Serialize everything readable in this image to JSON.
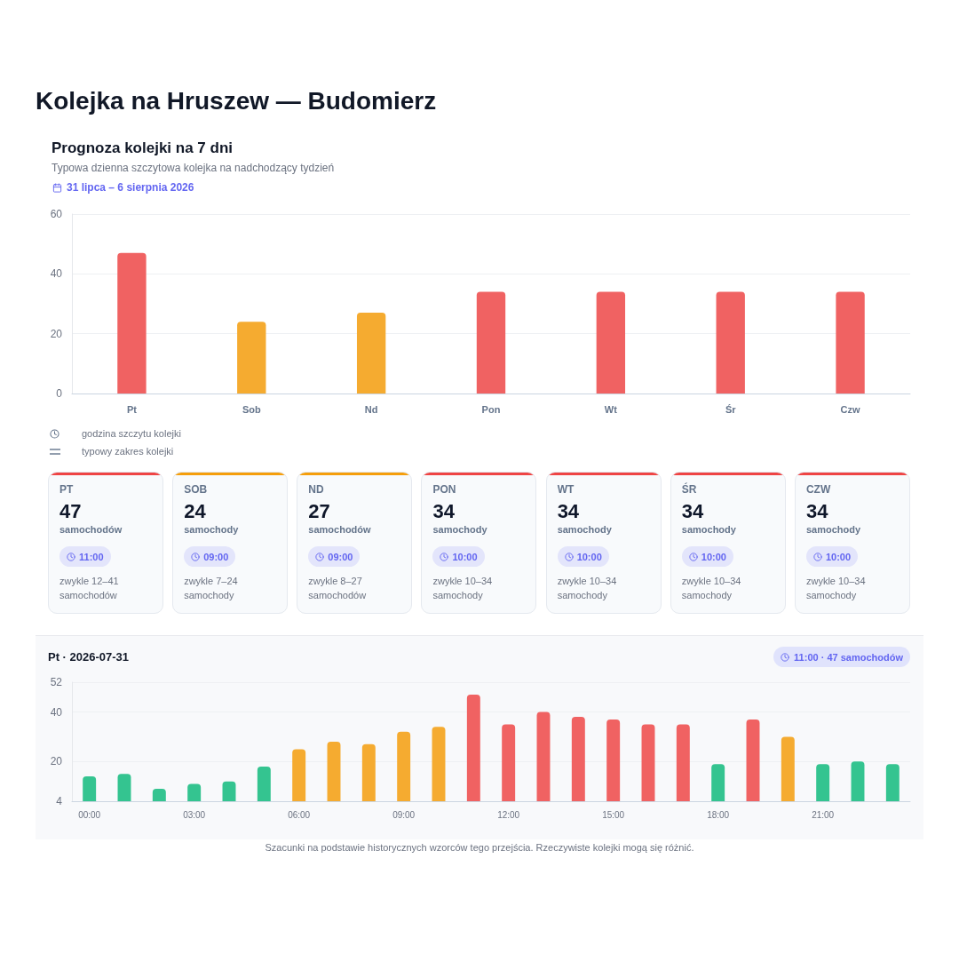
{
  "chart_data": [
    {
      "type": "bar",
      "title": "Prognoza kolejki na 7 dni",
      "subtitle": "Typowa dzienna szczytowa kolejka na nadchodzący tydzień",
      "annotations": [
        "Kolejka na Hruszew — Budomierz",
        "31 lipca – 6 sierpnia 2026",
        "godzina szczytu kolejki",
        "typowy zakres kolejki"
      ],
      "categories": [
        "Pt",
        "Sob",
        "Nd",
        "Pon",
        "Wt",
        "Śr",
        "Czw"
      ],
      "values": [
        47,
        24,
        27,
        34,
        34,
        34,
        34
      ],
      "colors": [
        "#f06262",
        "#f5ab30",
        "#f5ab30",
        "#f06262",
        "#f06262",
        "#f06262",
        "#f06262"
      ],
      "ylim": [
        0,
        60
      ],
      "yticks": [
        0,
        20,
        40,
        60
      ],
      "grid": "y"
    },
    {
      "type": "other",
      "colors": [
        "#ef4444",
        "#f59e0b",
        "#f59e0b",
        "#ef4444",
        "#ef4444",
        "#ef4444",
        "#ef4444"
      ],
      "annotations": [
        "PT",
        "47",
        "samochodów",
        "11:00",
        "zwykle 12–41 samochodów",
        "SOB",
        "24",
        "samochody",
        "09:00",
        "zwykle 7–24 samochody",
        "ND",
        "27",
        "samochodów",
        "09:00",
        "zwykle 8–27 samochodów",
        "PON",
        "34",
        "samochody",
        "10:00",
        "zwykle 10–34 samochody",
        "WT",
        "34",
        "samochody",
        "10:00",
        "zwykle 10–34 samochody",
        "ŚR",
        "34",
        "samochody",
        "10:00",
        "zwykle 10–34 samochody",
        "CZW",
        "34",
        "samochody",
        "10:00",
        "zwykle 10–34 samochody"
      ]
    },
    {
      "type": "bar",
      "title": "Pt · 2026-07-31",
      "annotations": [
        "11:00 · 47 samochodów",
        "Szacunki na podstawie historycznych wzorców tego przejścia. Rzeczywiste kolejki mogą się różnić."
      ],
      "categories": [
        "00:00",
        null,
        null,
        "03:00",
        null,
        null,
        "06:00",
        null,
        null,
        "09:00",
        null,
        null,
        "12:00",
        null,
        null,
        "15:00",
        null,
        null,
        "18:00",
        null,
        null,
        "21:00",
        null,
        null
      ],
      "values": [
        14,
        15,
        9,
        11,
        12,
        18,
        25,
        28,
        27,
        32,
        34,
        47,
        35,
        40,
        38,
        37,
        35,
        35,
        19,
        37,
        30,
        19,
        20,
        19
      ],
      "colors": [
        "#34c490",
        "#34c490",
        "#34c490",
        "#34c490",
        "#34c490",
        "#34c490",
        "#f5ab30",
        "#f5ab30",
        "#f5ab30",
        "#f5ab30",
        "#f5ab30",
        "#f06262",
        "#f06262",
        "#f06262",
        "#f06262",
        "#f06262",
        "#f06262",
        "#f06262",
        "#34c490",
        "#f06262",
        "#f5ab30",
        "#34c490",
        "#34c490",
        "#34c490"
      ],
      "ylim": [
        4,
        52
      ],
      "yticks": [
        4,
        20,
        40,
        52
      ],
      "grid": "y"
    }
  ]
}
